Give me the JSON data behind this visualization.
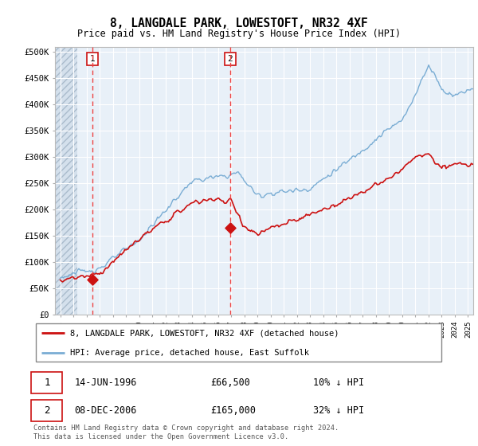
{
  "title": "8, LANGDALE PARK, LOWESTOFT, NR32 4XF",
  "subtitle": "Price paid vs. HM Land Registry's House Price Index (HPI)",
  "legend_line1": "8, LANGDALE PARK, LOWESTOFT, NR32 4XF (detached house)",
  "legend_line2": "HPI: Average price, detached house, East Suffolk",
  "annotation1": {
    "label": "1",
    "date": "14-JUN-1996",
    "price": 66500,
    "pct": "10% ↓ HPI",
    "year": 1996.45
  },
  "annotation2": {
    "label": "2",
    "date": "08-DEC-2006",
    "price": 165000,
    "pct": "32% ↓ HPI",
    "year": 2006.92
  },
  "footer": "Contains HM Land Registry data © Crown copyright and database right 2024.\nThis data is licensed under the Open Government Licence v3.0.",
  "hpi_color": "#7aadd4",
  "price_color": "#cc1111",
  "dashed_color": "#ee4444",
  "background_plot": "#e8f0f8",
  "yticks": [
    0,
    50000,
    100000,
    150000,
    200000,
    250000,
    300000,
    350000,
    400000,
    450000,
    500000
  ],
  "ylim": [
    0,
    510000
  ],
  "xlim_start": 1993.6,
  "xlim_end": 2025.4
}
